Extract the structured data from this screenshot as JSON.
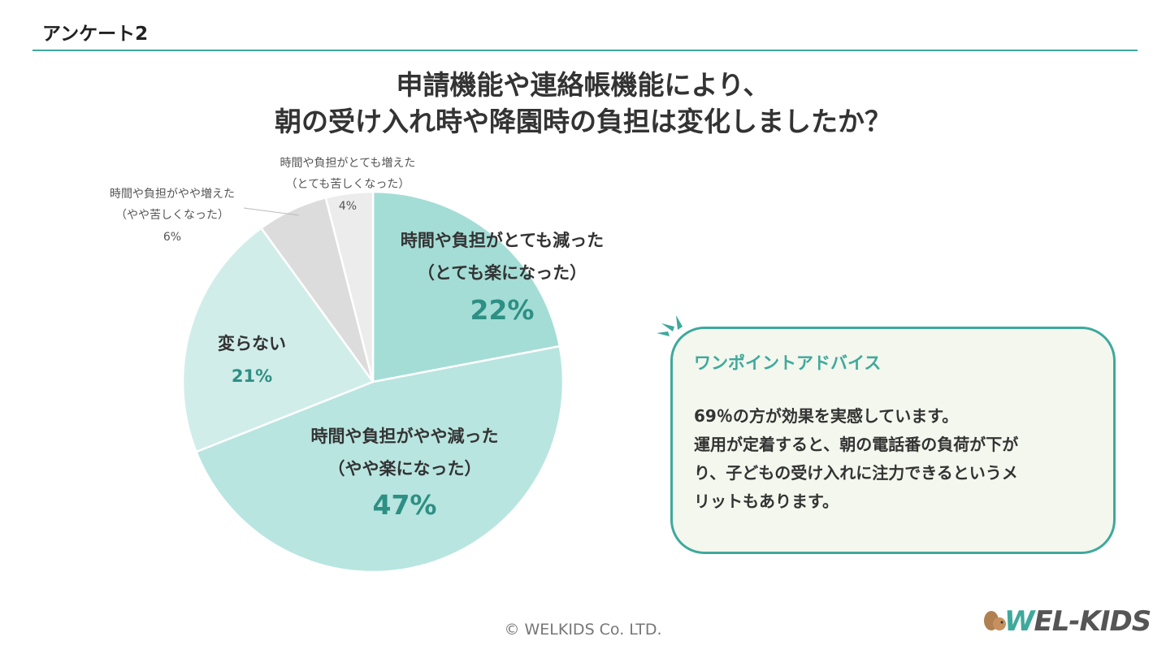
{
  "header": {
    "title": "アンケート2"
  },
  "question": {
    "line1": "申請機能や連絡帳機能により、",
    "line2": "朝の受け入れ時や降園時の負担は変化しましたか？"
  },
  "chart_data": {
    "type": "pie",
    "title": "",
    "slices": [
      {
        "label_line1": "時間や負担がとても減った",
        "label_line2": "（とても楽になった）",
        "value": 22,
        "value_label": "22%",
        "color": "#a4ddd6"
      },
      {
        "label_line1": "時間や負担がやや減った",
        "label_line2": "（やや楽になった）",
        "value": 47,
        "value_label": "47%",
        "color": "#b8e5e0"
      },
      {
        "label_line1": "変らない",
        "label_line2": "",
        "value": 21,
        "value_label": "21%",
        "color": "#d0ede9"
      },
      {
        "label_line1": "時間や負担がやや増えた",
        "label_line2": "（やや苦しくなった）",
        "value": 6,
        "value_label": "6%",
        "color": "#dcdcdc"
      },
      {
        "label_line1": "時間や負担がとても増えた",
        "label_line2": "（とても苦しくなった）",
        "value": 4,
        "value_label": "4%",
        "color": "#ececec"
      }
    ],
    "start_angle": "12 o'clock",
    "direction": "clockwise"
  },
  "advice": {
    "title": "ワンポイントアドバイス",
    "lines": [
      "69％の方が効果を実感しています。",
      "運用が定着すると、朝の電話番の負荷が下が",
      "り、子どもの受け入れに注力できるというメ",
      "リットもあります。"
    ]
  },
  "footer": {
    "copyright": "© WELKIDS Co. LTD."
  },
  "logo": {
    "w": "W",
    "rest": "EL-KIDS"
  },
  "colors": {
    "accent": "#3ea99c",
    "advice_bg": "#f4f7ee"
  }
}
